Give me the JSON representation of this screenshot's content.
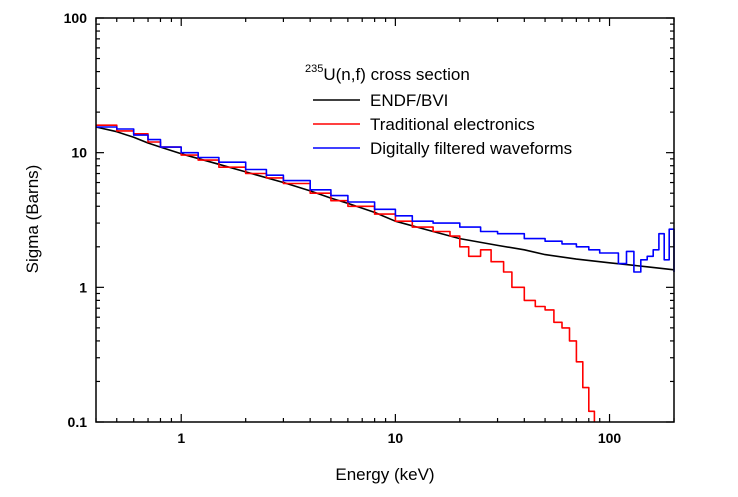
{
  "chart_data": {
    "type": "line",
    "title": "235U(n,f) cross section",
    "title_isotope": "235",
    "title_text": "U(n,f) cross section",
    "xlabel": "Energy (keV)",
    "ylabel": "Sigma (Barns)",
    "xscale": "log",
    "yscale": "log",
    "xlim": [
      0.4,
      200
    ],
    "ylim": [
      0.1,
      100
    ],
    "x_ticks": [
      1,
      10,
      100
    ],
    "x_tick_labels": [
      "1",
      "10",
      "100"
    ],
    "y_ticks": [
      0.1,
      1,
      10,
      100
    ],
    "y_tick_labels": [
      "0.1",
      "1",
      "10",
      "100"
    ],
    "grid": false,
    "legend_position": "top-right",
    "series": [
      {
        "name": "ENDF/BVI",
        "color": "#000000",
        "style": "smooth",
        "x": [
          0.4,
          0.5,
          0.6,
          0.7,
          0.8,
          1.0,
          1.5,
          2,
          3,
          4,
          5,
          6,
          8,
          10,
          15,
          20,
          30,
          40,
          50,
          70,
          100,
          150,
          200
        ],
        "y": [
          15.5,
          14.3,
          13.0,
          11.8,
          11.0,
          9.8,
          8.2,
          7.2,
          6.0,
          5.2,
          4.6,
          4.2,
          3.6,
          3.1,
          2.6,
          2.3,
          2.05,
          1.9,
          1.75,
          1.62,
          1.52,
          1.42,
          1.35
        ]
      },
      {
        "name": "Traditional electronics",
        "color": "#ff0000",
        "style": "step",
        "x": [
          0.4,
          0.5,
          0.6,
          0.7,
          0.8,
          1.0,
          1.2,
          1.5,
          2,
          2.5,
          3,
          4,
          5,
          6,
          8,
          10,
          12,
          15,
          18,
          20,
          22,
          25,
          28,
          32,
          35,
          40,
          45,
          50,
          55,
          60,
          65,
          70,
          75,
          80,
          85
        ],
        "y": [
          16.0,
          14.5,
          13.8,
          12.0,
          11.0,
          9.6,
          8.8,
          7.8,
          7.0,
          6.5,
          5.9,
          5.0,
          4.4,
          4.0,
          3.5,
          3.1,
          2.8,
          2.6,
          2.4,
          2.0,
          1.7,
          1.9,
          1.55,
          1.3,
          1.0,
          0.8,
          0.72,
          0.68,
          0.55,
          0.5,
          0.4,
          0.28,
          0.18,
          0.12,
          0.1
        ]
      },
      {
        "name": "Digitally filtered waveforms",
        "color": "#0000ff",
        "style": "step",
        "x": [
          0.4,
          0.5,
          0.6,
          0.7,
          0.8,
          1.0,
          1.2,
          1.5,
          2,
          2.5,
          3,
          4,
          5,
          6,
          8,
          10,
          12,
          15,
          20,
          25,
          30,
          40,
          50,
          60,
          70,
          80,
          90,
          100,
          110,
          120,
          130,
          140,
          150,
          160,
          170,
          180,
          190,
          200
        ],
        "y": [
          15.5,
          15.0,
          13.5,
          12.5,
          11.0,
          10.0,
          9.2,
          8.5,
          7.5,
          6.8,
          6.2,
          5.3,
          4.8,
          4.3,
          3.8,
          3.4,
          3.1,
          3.0,
          2.8,
          2.6,
          2.5,
          2.3,
          2.2,
          2.1,
          2.0,
          1.9,
          1.8,
          1.8,
          1.5,
          1.85,
          1.3,
          1.6,
          1.7,
          1.9,
          2.5,
          1.6,
          2.7,
          1.3
        ]
      }
    ]
  }
}
